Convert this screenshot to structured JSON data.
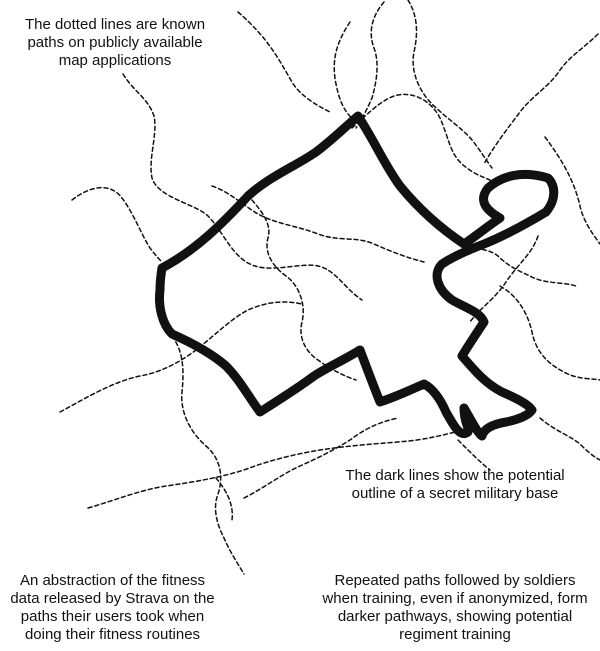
{
  "colors": {
    "background": "#ffffff",
    "ink": "#111111"
  },
  "captions": {
    "dotted_lines": [
      "The dotted lines are known",
      "paths on publicly available",
      "map applications"
    ],
    "dark_lines": [
      "The dark lines show the potential",
      "outline of a secret military base"
    ],
    "abstraction": [
      "An abstraction of the fitness",
      "data released by Strava on the",
      "paths their users took when",
      "doing their fitness routines"
    ],
    "repeated_paths": [
      "Repeated paths followed by soldiers",
      "when training, even if anonymized, form",
      "darker pathways, showing potential",
      "regiment training"
    ]
  }
}
